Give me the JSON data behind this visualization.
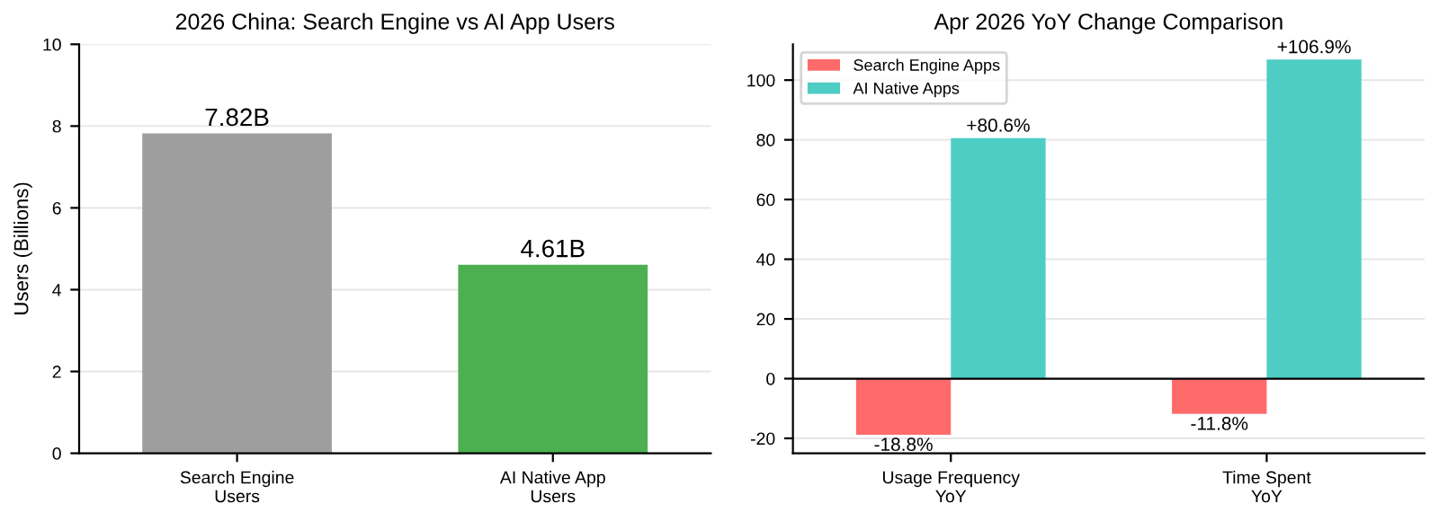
{
  "chart_data": [
    {
      "type": "bar",
      "title": "2026 China: Search Engine vs AI App Users",
      "ylabel": "Users (Billions)",
      "categories": [
        "Search Engine\nUsers",
        "AI Native App\nUsers"
      ],
      "values": [
        7.82,
        4.61
      ],
      "colors": [
        "#9e9e9e",
        "#4caf50"
      ],
      "value_labels": [
        "7.82B",
        "4.61B"
      ],
      "ylim": [
        0,
        10
      ],
      "yticks": [
        0,
        2,
        4,
        6,
        8,
        10
      ],
      "grid": "y"
    },
    {
      "type": "bar",
      "title": "Apr 2026 YoY Change Comparison",
      "categories": [
        "Usage Frequency\nYoY",
        "Time Spent\nYoY"
      ],
      "series": [
        {
          "name": "Search Engine Apps",
          "color": "#ff6b6b",
          "values": [
            -18.8,
            -11.8
          ],
          "value_labels": [
            "-18.8%",
            "-11.8%"
          ]
        },
        {
          "name": "AI Native Apps",
          "color": "#4ecdc4",
          "values": [
            80.6,
            106.9
          ],
          "value_labels": [
            "+80.6%",
            "+106.9%"
          ]
        }
      ],
      "ylim": [
        -25,
        112
      ],
      "yticks": [
        -20,
        0,
        20,
        40,
        60,
        80,
        100
      ],
      "grid": "y",
      "legend": "top left",
      "ref_lines": [
        {
          "axis": "y",
          "value": 0,
          "color": "#000000"
        }
      ]
    }
  ]
}
